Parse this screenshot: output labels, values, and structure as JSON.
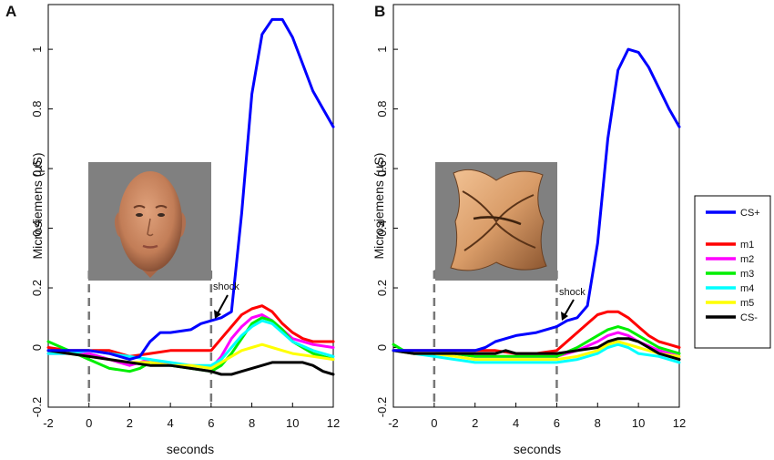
{
  "chart_data": [
    {
      "type": "line",
      "panel_label": "A",
      "stimulus": "face",
      "xlabel": "seconds",
      "ylabel": "Microsiemens (µS)",
      "xlim": [
        -2,
        12
      ],
      "ylim": [
        -0.2,
        1.15
      ],
      "xticks": [
        -2,
        0,
        2,
        4,
        6,
        8,
        10,
        12
      ],
      "xtick_labels": [
        "-2",
        "0",
        "2",
        "4",
        "6",
        "8",
        "10",
        "12"
      ],
      "yticks": [
        -0.2,
        0,
        0.2,
        0.4,
        0.6,
        0.8,
        1
      ],
      "ytick_labels": [
        "-0.2",
        "0",
        "0.2",
        "0.4",
        "0.6",
        "0.8",
        "1"
      ],
      "vlines": [
        0,
        6
      ],
      "annotation": {
        "text": "shock",
        "x": 6.2,
        "y": 0.1
      },
      "series": [
        {
          "name": "CS+",
          "color": "#0000ff",
          "x": [
            -2,
            -1,
            0,
            1,
            2,
            2.5,
            3,
            3.5,
            4,
            4.5,
            5,
            5.5,
            6,
            6.5,
            7,
            7.5,
            8,
            8.5,
            9,
            9.5,
            10,
            10.5,
            11,
            11.5,
            12
          ],
          "y": [
            -0.01,
            -0.01,
            -0.01,
            -0.02,
            -0.04,
            -0.03,
            0.02,
            0.05,
            0.05,
            0.055,
            0.06,
            0.08,
            0.09,
            0.1,
            0.12,
            0.45,
            0.85,
            1.05,
            1.1,
            1.1,
            1.04,
            0.95,
            0.86,
            0.8,
            0.74
          ]
        },
        {
          "name": "m1",
          "color": "#ff0000",
          "x": [
            -2,
            -1,
            0,
            1,
            2,
            3,
            4,
            5,
            6,
            6.5,
            7,
            7.5,
            8,
            8.5,
            9,
            9.5,
            10,
            10.5,
            11,
            11.5,
            12
          ],
          "y": [
            0.0,
            -0.01,
            -0.01,
            -0.01,
            -0.03,
            -0.02,
            -0.01,
            -0.01,
            -0.01,
            0.03,
            0.07,
            0.11,
            0.13,
            0.14,
            0.12,
            0.08,
            0.05,
            0.03,
            0.02,
            0.02,
            0.02
          ]
        },
        {
          "name": "m2",
          "color": "#ff00ff",
          "x": [
            -2,
            -1,
            0,
            1,
            2,
            3,
            4,
            5,
            6,
            6.5,
            7,
            7.5,
            8,
            8.5,
            9,
            9.5,
            10,
            11,
            12
          ],
          "y": [
            -0.02,
            -0.02,
            -0.02,
            -0.04,
            -0.06,
            -0.04,
            -0.06,
            -0.06,
            -0.07,
            -0.03,
            0.03,
            0.07,
            0.1,
            0.11,
            0.09,
            0.06,
            0.03,
            0.01,
            0.0
          ]
        },
        {
          "name": "m3",
          "color": "#00ee00",
          "x": [
            -2,
            -1,
            0,
            1,
            2,
            2.5,
            3,
            4,
            5,
            6,
            6.5,
            7,
            7.5,
            8,
            8.5,
            9,
            9.5,
            10,
            11,
            12
          ],
          "y": [
            0.02,
            -0.01,
            -0.04,
            -0.07,
            -0.08,
            -0.07,
            -0.05,
            -0.06,
            -0.07,
            -0.08,
            -0.06,
            -0.02,
            0.03,
            0.08,
            0.1,
            0.09,
            0.06,
            0.02,
            -0.02,
            -0.04
          ]
        },
        {
          "name": "m4",
          "color": "#00ffff",
          "x": [
            -2,
            -1,
            0,
            1,
            2,
            3,
            4,
            5,
            6,
            6.5,
            7,
            7.5,
            8,
            8.5,
            9,
            9.5,
            10,
            11,
            12
          ],
          "y": [
            -0.02,
            -0.02,
            -0.01,
            -0.02,
            -0.03,
            -0.04,
            -0.05,
            -0.06,
            -0.06,
            -0.04,
            0.0,
            0.04,
            0.07,
            0.09,
            0.08,
            0.05,
            0.02,
            -0.01,
            -0.03
          ]
        },
        {
          "name": "m5",
          "color": "#ffff00",
          "x": [
            -2,
            -1,
            0,
            1,
            2,
            3,
            4,
            5,
            6,
            6.5,
            7,
            7.5,
            8,
            8.5,
            9,
            9.5,
            10,
            11,
            12
          ],
          "y": [
            -0.01,
            -0.02,
            -0.03,
            -0.04,
            -0.05,
            -0.05,
            -0.06,
            -0.06,
            -0.07,
            -0.05,
            -0.03,
            -0.01,
            0.0,
            0.01,
            0.0,
            -0.01,
            -0.02,
            -0.03,
            -0.04
          ]
        },
        {
          "name": "CS-",
          "color": "#000000",
          "x": [
            -2,
            -1,
            0,
            1,
            2,
            3,
            4,
            5,
            6,
            6.5,
            7,
            7.5,
            8,
            8.5,
            9,
            9.5,
            10,
            10.5,
            11,
            11.5,
            12
          ],
          "y": [
            -0.01,
            -0.02,
            -0.03,
            -0.04,
            -0.05,
            -0.06,
            -0.06,
            -0.07,
            -0.08,
            -0.09,
            -0.09,
            -0.08,
            -0.07,
            -0.06,
            -0.05,
            -0.05,
            -0.05,
            -0.05,
            -0.06,
            -0.08,
            -0.09
          ]
        }
      ]
    },
    {
      "type": "line",
      "panel_label": "B",
      "stimulus": "abstract shape",
      "xlabel": "seconds",
      "ylabel": "Microsiemens (µS)",
      "xlim": [
        -2,
        12
      ],
      "ylim": [
        -0.2,
        1.15
      ],
      "xticks": [
        -2,
        0,
        2,
        4,
        6,
        8,
        10,
        12
      ],
      "xtick_labels": [
        "-2",
        "0",
        "2",
        "4",
        "6",
        "8",
        "10",
        "12"
      ],
      "yticks": [
        -0.2,
        0,
        0.2,
        0.4,
        0.6,
        0.8,
        1
      ],
      "ytick_labels": [
        "-0.2",
        "0",
        "0.2",
        "0.4",
        "0.6",
        "0.8",
        "1"
      ],
      "vlines": [
        0,
        6
      ],
      "annotation": {
        "text": "shock",
        "x": 6.2,
        "y": 0.09
      },
      "series": [
        {
          "name": "CS+",
          "color": "#0000ff",
          "x": [
            -2,
            -1,
            0,
            1,
            2,
            2.5,
            3,
            3.5,
            4,
            5,
            6,
            6.5,
            7,
            7.5,
            8,
            8.5,
            9,
            9.5,
            10,
            10.5,
            11,
            11.5,
            12
          ],
          "y": [
            -0.01,
            -0.01,
            -0.01,
            -0.01,
            -0.01,
            0.0,
            0.02,
            0.03,
            0.04,
            0.05,
            0.07,
            0.09,
            0.1,
            0.14,
            0.35,
            0.7,
            0.93,
            1.0,
            0.99,
            0.94,
            0.87,
            0.8,
            0.74
          ]
        },
        {
          "name": "m1",
          "color": "#ff0000",
          "x": [
            -2,
            -1,
            0,
            1,
            2,
            3,
            4,
            5,
            6,
            6.5,
            7,
            7.5,
            8,
            8.5,
            9,
            9.5,
            10,
            10.5,
            11,
            11.5,
            12
          ],
          "y": [
            -0.01,
            -0.01,
            -0.01,
            -0.01,
            -0.01,
            -0.01,
            -0.02,
            -0.02,
            -0.01,
            0.02,
            0.05,
            0.08,
            0.11,
            0.12,
            0.12,
            0.1,
            0.07,
            0.04,
            0.02,
            0.01,
            0.0
          ]
        },
        {
          "name": "m2",
          "color": "#ff00ff",
          "x": [
            -2,
            -1,
            0,
            1,
            2,
            3,
            4,
            5,
            6,
            7,
            8,
            8.5,
            9,
            9.5,
            10,
            11,
            12
          ],
          "y": [
            -0.01,
            -0.02,
            -0.02,
            -0.02,
            -0.03,
            -0.03,
            -0.03,
            -0.03,
            -0.03,
            -0.01,
            0.02,
            0.04,
            0.05,
            0.04,
            0.02,
            -0.01,
            -0.03
          ]
        },
        {
          "name": "m3",
          "color": "#00ee00",
          "x": [
            -2,
            -1.5,
            -1,
            0,
            1,
            2,
            3,
            4,
            5,
            6,
            7,
            8,
            8.5,
            9,
            9.5,
            10,
            11,
            12
          ],
          "y": [
            0.01,
            -0.01,
            -0.02,
            -0.02,
            -0.02,
            -0.03,
            -0.03,
            -0.03,
            -0.03,
            -0.03,
            0.0,
            0.04,
            0.06,
            0.07,
            0.06,
            0.04,
            0.0,
            -0.02
          ]
        },
        {
          "name": "m4",
          "color": "#00ffff",
          "x": [
            -2,
            -1,
            0,
            1,
            2,
            3,
            4,
            5,
            6,
            7,
            8,
            8.5,
            9,
            9.5,
            10,
            11,
            12
          ],
          "y": [
            -0.01,
            -0.02,
            -0.03,
            -0.04,
            -0.05,
            -0.05,
            -0.05,
            -0.05,
            -0.05,
            -0.04,
            -0.02,
            0.0,
            0.01,
            0.0,
            -0.02,
            -0.03,
            -0.05
          ]
        },
        {
          "name": "m5",
          "color": "#ffff00",
          "x": [
            -2,
            -1,
            0,
            1,
            2,
            3,
            4,
            5,
            6,
            7,
            8,
            8.5,
            9,
            9.5,
            10,
            11,
            12
          ],
          "y": [
            -0.01,
            -0.02,
            -0.02,
            -0.03,
            -0.04,
            -0.04,
            -0.04,
            -0.04,
            -0.04,
            -0.03,
            -0.01,
            0.01,
            0.02,
            0.01,
            0.0,
            -0.02,
            -0.03
          ]
        },
        {
          "name": "CS-",
          "color": "#000000",
          "x": [
            -2,
            -1,
            0,
            1,
            2,
            3,
            3.5,
            4,
            5,
            6,
            7,
            8,
            8.5,
            9,
            9.5,
            10,
            10.5,
            11,
            12
          ],
          "y": [
            -0.01,
            -0.02,
            -0.02,
            -0.02,
            -0.02,
            -0.02,
            -0.01,
            -0.02,
            -0.02,
            -0.02,
            -0.01,
            0.0,
            0.02,
            0.03,
            0.03,
            0.02,
            0.0,
            -0.02,
            -0.04
          ]
        }
      ]
    }
  ],
  "legend": {
    "entries": [
      {
        "name": "CS+",
        "color": "#0000ff"
      },
      {
        "name": "m1",
        "color": "#ff0000"
      },
      {
        "name": "m2",
        "color": "#ff00ff"
      },
      {
        "name": "m3",
        "color": "#00ee00"
      },
      {
        "name": "m4",
        "color": "#00ffff"
      },
      {
        "name": "m5",
        "color": "#ffff00"
      },
      {
        "name": "CS-",
        "color": "#000000"
      }
    ]
  }
}
